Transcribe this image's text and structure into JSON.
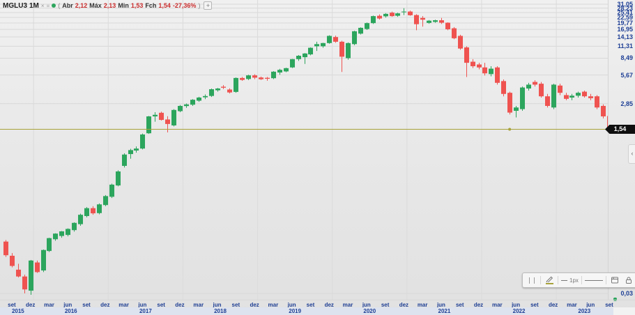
{
  "legend": {
    "symbol": "MGLU3",
    "timeframe": "1M",
    "hide_icon": "×",
    "settings_icon": "=",
    "paren_open": "(",
    "open_label": "Abr",
    "open_value": "2,12",
    "high_label": "Máx",
    "high_value": "2,13",
    "low_label": "Min",
    "low_value": "1,53",
    "close_label": "Fch",
    "close_value": "1,54",
    "change_value": "-27,36%",
    "paren_close": ")",
    "add_button_label": "+"
  },
  "y_axis": {
    "tick_labels": [
      "31,05",
      "28,23",
      "25,41",
      "22,59",
      "19,77",
      "16,95",
      "14,13",
      "11,31",
      "8,49",
      "5,67",
      "2,85",
      "0,03"
    ],
    "last_price_label": "1,54"
  },
  "x_axis": {
    "month_tick_labels": [
      "set",
      "dez",
      "mar",
      "jun",
      "set",
      "dez",
      "mar",
      "jun",
      "set",
      "dez",
      "mar",
      "jun",
      "set",
      "dez",
      "mar",
      "jun",
      "set",
      "dez",
      "mar",
      "jun",
      "set",
      "dez",
      "mar",
      "jun",
      "set",
      "dez",
      "mar",
      "jun",
      "set",
      "dez",
      "mar",
      "jun",
      "set"
    ],
    "year_labels": [
      "2015",
      "2016",
      "2017",
      "2018",
      "2019",
      "2020",
      "2021",
      "2022",
      "2023"
    ],
    "month_name_map": {
      "3": "mar",
      "6": "jun",
      "9": "set",
      "12": "dez"
    }
  },
  "toolbar": {
    "line_width_label": "1px",
    "icons": [
      "drag-handle",
      "color-pencil",
      "line-width",
      "line-style",
      "template",
      "lock",
      "delete",
      "more-options"
    ],
    "collapse_arrow": "‹"
  },
  "drawing": {
    "type": "horizontal-line",
    "price": 1.54,
    "anchor_month": "2022-05",
    "color": "#a8a23a"
  },
  "colors": {
    "up": "#2ca55d",
    "down": "#ef5350",
    "axis_text": "#1d3e95",
    "badge_bg": "#0f0f0f",
    "grid": "#d8d8d8"
  },
  "chart_data": {
    "type": "candlestick",
    "symbol": "MGLU3",
    "timeframe": "1M",
    "scale": "log",
    "title": "MGLU3 1M",
    "ylabel": "",
    "xlabel": "",
    "grid": true,
    "last_bar": {
      "open": 2.12,
      "high": 2.13,
      "low": 1.53,
      "close": 1.54,
      "change_pct": -27.36
    },
    "y_ticks": [
      31.05,
      28.23,
      25.41,
      22.59,
      19.77,
      16.95,
      14.13,
      11.31,
      8.49,
      5.67,
      2.85,
      0.03
    ],
    "x_range": [
      "2015-08",
      "2023-09"
    ],
    "candles": [
      [
        "2015-08",
        0.104,
        0.108,
        0.072,
        0.075
      ],
      [
        "2015-09",
        0.074,
        0.079,
        0.056,
        0.058
      ],
      [
        "2015-10",
        0.053,
        0.061,
        0.044,
        0.045
      ],
      [
        "2015-11",
        0.045,
        0.047,
        0.03,
        0.033
      ],
      [
        "2015-12",
        0.032,
        0.067,
        0.029,
        0.066
      ],
      [
        "2016-01",
        0.063,
        0.066,
        0.049,
        0.05
      ],
      [
        "2016-02",
        0.052,
        0.086,
        0.05,
        0.085
      ],
      [
        "2016-03",
        0.083,
        0.114,
        0.081,
        0.113
      ],
      [
        "2016-04",
        0.11,
        0.127,
        0.106,
        0.126
      ],
      [
        "2016-05",
        0.119,
        0.134,
        0.114,
        0.133
      ],
      [
        "2016-06",
        0.122,
        0.143,
        0.118,
        0.141
      ],
      [
        "2016-07",
        0.137,
        0.165,
        0.132,
        0.163
      ],
      [
        "2016-08",
        0.158,
        0.203,
        0.152,
        0.198
      ],
      [
        "2016-09",
        0.192,
        0.238,
        0.186,
        0.232
      ],
      [
        "2016-10",
        0.232,
        0.243,
        0.198,
        0.205
      ],
      [
        "2016-11",
        0.206,
        0.26,
        0.2,
        0.254
      ],
      [
        "2016-12",
        0.25,
        0.318,
        0.243,
        0.31
      ],
      [
        "2017-01",
        0.305,
        0.418,
        0.296,
        0.408
      ],
      [
        "2017-02",
        0.4,
        0.575,
        0.392,
        0.56
      ],
      [
        "2017-03",
        0.64,
        0.865,
        0.615,
        0.84
      ],
      [
        "2017-04",
        0.85,
        0.965,
        0.76,
        0.935
      ],
      [
        "2017-05",
        0.925,
        1.02,
        0.88,
        0.97
      ],
      [
        "2017-06",
        0.97,
        1.39,
        0.95,
        1.36
      ],
      [
        "2017-07",
        1.4,
        2.12,
        1.38,
        2.1
      ],
      [
        "2017-08",
        2.1,
        2.32,
        1.85,
        2.18
      ],
      [
        "2017-09",
        2.29,
        2.35,
        1.9,
        1.93
      ],
      [
        "2017-10",
        1.95,
        2.11,
        1.43,
        1.75
      ],
      [
        "2017-11",
        1.69,
        2.5,
        1.65,
        2.45
      ],
      [
        "2017-12",
        2.38,
        2.76,
        2.32,
        2.7
      ],
      [
        "2018-01",
        2.69,
        2.86,
        2.58,
        2.8
      ],
      [
        "2018-02",
        2.78,
        3.18,
        2.7,
        3.13
      ],
      [
        "2018-03",
        3.06,
        3.36,
        2.98,
        3.3
      ],
      [
        "2018-04",
        3.32,
        3.56,
        3.18,
        3.42
      ],
      [
        "2018-05",
        3.43,
        4.1,
        3.35,
        4.03
      ],
      [
        "2018-06",
        3.93,
        4.16,
        3.8,
        4.1
      ],
      [
        "2018-07",
        4.28,
        4.45,
        4.05,
        4.18
      ],
      [
        "2018-08",
        4.0,
        4.12,
        3.64,
        3.73
      ],
      [
        "2018-09",
        3.78,
        5.35,
        3.7,
        5.28
      ],
      [
        "2018-10",
        5.28,
        5.42,
        4.93,
        5.04
      ],
      [
        "2018-11",
        5.15,
        5.7,
        5.02,
        5.62
      ],
      [
        "2018-12",
        5.62,
        5.78,
        5.13,
        5.32
      ],
      [
        "2019-01",
        5.34,
        5.46,
        5.03,
        5.12
      ],
      [
        "2019-02",
        5.3,
        5.42,
        4.94,
        5.18
      ],
      [
        "2019-03",
        5.25,
        6.22,
        5.14,
        6.14
      ],
      [
        "2019-04",
        6.02,
        6.58,
        5.71,
        6.42
      ],
      [
        "2019-05",
        6.18,
        6.76,
        6.06,
        6.68
      ],
      [
        "2019-06",
        6.8,
        8.35,
        6.7,
        8.3
      ],
      [
        "2019-07",
        8.3,
        9.15,
        7.95,
        9.0
      ],
      [
        "2019-08",
        8.7,
        9.6,
        7.4,
        9.5
      ],
      [
        "2019-09",
        9.3,
        11.0,
        9.1,
        10.9
      ],
      [
        "2019-10",
        11.3,
        12.6,
        10.1,
        11.9
      ],
      [
        "2019-11",
        11.3,
        12.3,
        10.9,
        12.2
      ],
      [
        "2019-12",
        12.2,
        14.7,
        12.0,
        14.5
      ],
      [
        "2020-01",
        14.1,
        14.6,
        12.3,
        12.6
      ],
      [
        "2020-02",
        12.6,
        12.9,
        6.1,
        8.8
      ],
      [
        "2020-03",
        8.5,
        12.4,
        8.2,
        12.2
      ],
      [
        "2020-04",
        11.9,
        16.4,
        11.6,
        16.2
      ],
      [
        "2020-05",
        15.3,
        17.8,
        15.0,
        17.6
      ],
      [
        "2020-06",
        17.1,
        20.0,
        16.7,
        19.7
      ],
      [
        "2020-07",
        19.7,
        23.6,
        19.3,
        23.3
      ],
      [
        "2020-08",
        23.5,
        24.3,
        21.5,
        22.0
      ],
      [
        "2020-09",
        23.2,
        25.0,
        22.5,
        24.6
      ],
      [
        "2020-10",
        25.3,
        26.0,
        22.9,
        23.3
      ],
      [
        "2020-11",
        23.5,
        25.3,
        22.9,
        24.9
      ],
      [
        "2020-12",
        25.6,
        28.2,
        23.9,
        26.0
      ],
      [
        "2021-01",
        26.0,
        26.6,
        23.5,
        23.8
      ],
      [
        "2021-02",
        23.9,
        24.4,
        16.6,
        19.2
      ],
      [
        "2021-03",
        22.3,
        23.3,
        18.1,
        21.4
      ],
      [
        "2021-04",
        19.8,
        21.2,
        19.4,
        20.9
      ],
      [
        "2021-05",
        20.3,
        21.4,
        19.9,
        21.1
      ],
      [
        "2021-06",
        21.1,
        22.3,
        19.3,
        19.9
      ],
      [
        "2021-07",
        19.9,
        20.1,
        16.6,
        17.0
      ],
      [
        "2021-08",
        17.4,
        17.9,
        13.4,
        13.7
      ],
      [
        "2021-09",
        14.5,
        14.9,
        10.4,
        10.7
      ],
      [
        "2021-10",
        11.0,
        11.3,
        5.4,
        7.6
      ],
      [
        "2021-11",
        7.8,
        8.3,
        6.7,
        7.0
      ],
      [
        "2021-12",
        7.3,
        7.6,
        6.5,
        6.8
      ],
      [
        "2022-01",
        6.8,
        7.6,
        5.6,
        5.9
      ],
      [
        "2022-02",
        5.8,
        7.0,
        5.5,
        6.6
      ],
      [
        "2022-03",
        6.8,
        7.0,
        4.5,
        4.7
      ],
      [
        "2022-04",
        4.9,
        5.1,
        3.4,
        3.6
      ],
      [
        "2022-05",
        3.7,
        3.8,
        2.2,
        2.3
      ],
      [
        "2022-06",
        2.4,
        2.7,
        2.05,
        2.6
      ],
      [
        "2022-07",
        2.5,
        4.3,
        2.4,
        4.2
      ],
      [
        "2022-08",
        4.1,
        4.7,
        3.9,
        4.5
      ],
      [
        "2022-09",
        4.8,
        5.0,
        4.3,
        4.5
      ],
      [
        "2022-10",
        4.6,
        4.8,
        3.3,
        3.4
      ],
      [
        "2022-11",
        3.4,
        3.6,
        2.6,
        2.7
      ],
      [
        "2022-12",
        2.6,
        4.6,
        2.5,
        4.5
      ],
      [
        "2023-01",
        4.4,
        4.6,
        3.5,
        3.7
      ],
      [
        "2023-02",
        3.5,
        3.7,
        3.1,
        3.2
      ],
      [
        "2023-03",
        3.3,
        3.6,
        3.1,
        3.45
      ],
      [
        "2023-04",
        3.45,
        3.8,
        3.3,
        3.7
      ],
      [
        "2023-05",
        3.8,
        3.9,
        3.3,
        3.4
      ],
      [
        "2023-06",
        3.4,
        3.6,
        3.1,
        3.25
      ],
      [
        "2023-07",
        3.4,
        3.5,
        2.5,
        2.6
      ],
      [
        "2023-08",
        2.7,
        2.8,
        2.0,
        2.1
      ],
      [
        "2023-09",
        2.12,
        2.13,
        1.53,
        1.54
      ]
    ]
  }
}
